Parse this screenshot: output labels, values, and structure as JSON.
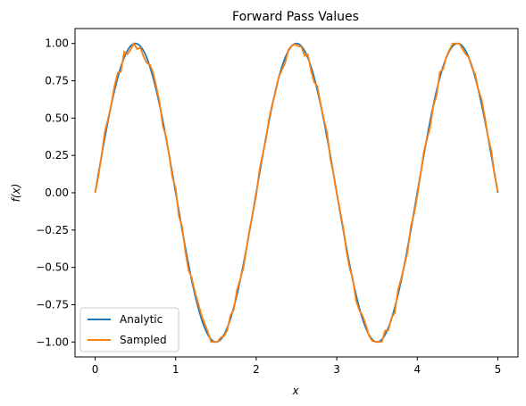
{
  "chart_data": {
    "type": "line",
    "title": "Forward Pass Values",
    "xlabel": "x",
    "ylabel": "f(x)",
    "xlim": [
      -0.25,
      5.25
    ],
    "ylim": [
      -1.1,
      1.1
    ],
    "x_ticks": [
      "0",
      "1",
      "2",
      "3",
      "4",
      "5"
    ],
    "y_ticks": [
      "-1.00",
      "-0.75",
      "-0.50",
      "-0.25",
      "0.00",
      "0.25",
      "0.50",
      "0.75",
      "1.00"
    ],
    "grid": false,
    "legend_position": "lower-left",
    "function": "sin(pi * x)",
    "x_range": [
      0,
      5
    ],
    "series": [
      {
        "name": "Analytic",
        "color": "#1f77b4"
      },
      {
        "name": "Sampled",
        "color": "#ff7f0e",
        "x_step": 0.04,
        "noise_amplitude": 0.04
      }
    ]
  }
}
